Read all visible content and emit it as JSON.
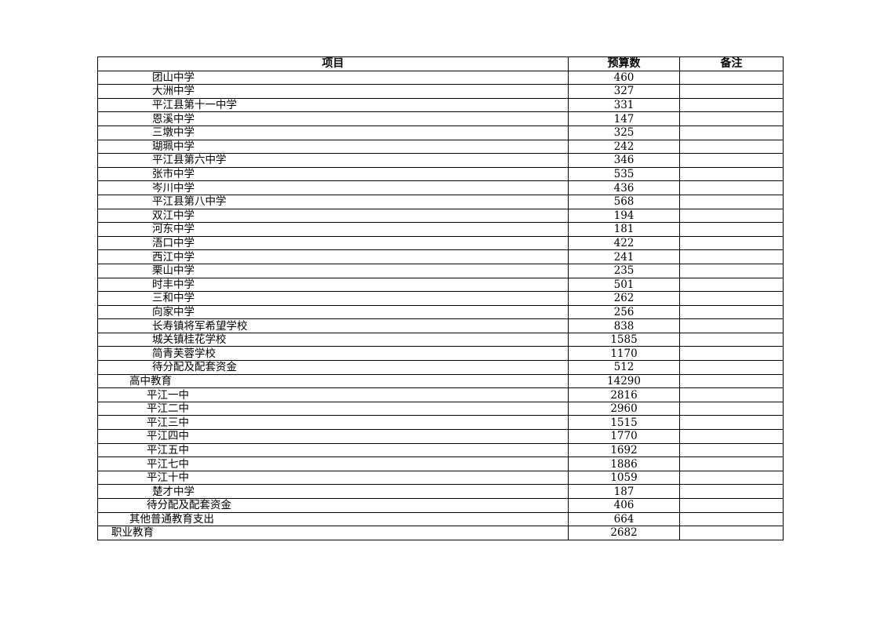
{
  "table": {
    "headers": [
      "项目",
      "预算数",
      "备注"
    ],
    "rows": [
      {
        "name": "团山中学",
        "amount": "460",
        "note": "",
        "level": 3
      },
      {
        "name": "大洲中学",
        "amount": "327",
        "note": "",
        "level": 3
      },
      {
        "name": "平江县第十一中学",
        "amount": "331",
        "note": "",
        "level": 3
      },
      {
        "name": "恩溪中学",
        "amount": "147",
        "note": "",
        "level": 3
      },
      {
        "name": "三墩中学",
        "amount": "325",
        "note": "",
        "level": 3
      },
      {
        "name": "瑚珮中学",
        "amount": "242",
        "note": "",
        "level": 3
      },
      {
        "name": "平江县第六中学",
        "amount": "346",
        "note": "",
        "level": 3
      },
      {
        "name": "张市中学",
        "amount": "535",
        "note": "",
        "level": 3
      },
      {
        "name": "岑川中学",
        "amount": "436",
        "note": "",
        "level": 3
      },
      {
        "name": "平江县第八中学",
        "amount": "568",
        "note": "",
        "level": 3
      },
      {
        "name": "双江中学",
        "amount": "194",
        "note": "",
        "level": 3
      },
      {
        "name": "河东中学",
        "amount": "181",
        "note": "",
        "level": 3
      },
      {
        "name": "浯口中学",
        "amount": "422",
        "note": "",
        "level": 3
      },
      {
        "name": "西江中学",
        "amount": "241",
        "note": "",
        "level": 3
      },
      {
        "name": "栗山中学",
        "amount": "235",
        "note": "",
        "level": 3
      },
      {
        "name": "时丰中学",
        "amount": "501",
        "note": "",
        "level": 3
      },
      {
        "name": "三和中学",
        "amount": "262",
        "note": "",
        "level": 3
      },
      {
        "name": "向家中学",
        "amount": "256",
        "note": "",
        "level": 3
      },
      {
        "name": "长寿镇将军希望学校",
        "amount": "838",
        "note": "",
        "level": 3
      },
      {
        "name": "城关镇桂花学校",
        "amount": "1585",
        "note": "",
        "level": 3
      },
      {
        "name": "简青芙蓉学校",
        "amount": "1170",
        "note": "",
        "level": 3
      },
      {
        "name": "待分配及配套资金",
        "amount": "512",
        "note": "",
        "level": 3
      },
      {
        "name": "高中教育",
        "amount": "14290",
        "note": "",
        "level": 2
      },
      {
        "name": "平江一中",
        "amount": "2816",
        "note": "",
        "level": 2.5
      },
      {
        "name": "平江二中",
        "amount": "2960",
        "note": "",
        "level": 2.5
      },
      {
        "name": "平江三中",
        "amount": "1515",
        "note": "",
        "level": 2.5
      },
      {
        "name": "平江四中",
        "amount": "1770",
        "note": "",
        "level": 2.5
      },
      {
        "name": "平江五中",
        "amount": "1692",
        "note": "",
        "level": 2.5
      },
      {
        "name": "平江七中",
        "amount": "1886",
        "note": "",
        "level": 2.5
      },
      {
        "name": "平江十中",
        "amount": "1059",
        "note": "",
        "level": 2.5
      },
      {
        "name": "楚才中学",
        "amount": "187",
        "note": "",
        "level": 3
      },
      {
        "name": "待分配及配套资金",
        "amount": "406",
        "note": "",
        "level": 2.5
      },
      {
        "name": "其他普通教育支出",
        "amount": "664",
        "note": "",
        "level": 2
      },
      {
        "name": "职业教育",
        "amount": "2682",
        "note": "",
        "level": 1
      }
    ]
  }
}
